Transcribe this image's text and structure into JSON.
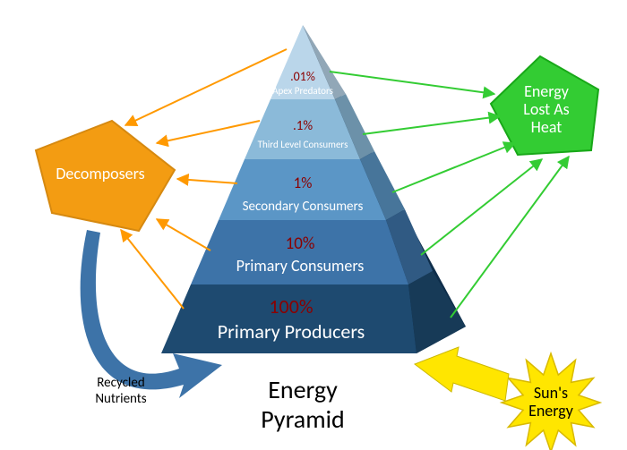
{
  "title_line1": "Energy",
  "title_line2": "Pyramid",
  "levels": [
    {
      "percent": ".01%",
      "label": "Apex Predators",
      "color": "#bad6ea",
      "pct_fontsize": 14,
      "label_fontsize": 11
    },
    {
      "percent": ".1%",
      "label": "Third Level Consumers",
      "color": "#8bbad9",
      "pct_fontsize": 15,
      "label_fontsize": 11
    },
    {
      "percent": "1%",
      "label": "Secondary Consumers",
      "color": "#5b96c6",
      "pct_fontsize": 17,
      "label_fontsize": 15
    },
    {
      "percent": "10%",
      "label": "Primary Consumers",
      "color": "#3d73a8",
      "pct_fontsize": 19,
      "label_fontsize": 18
    },
    {
      "percent": "100%",
      "label": "Primary Producers",
      "color": "#1e4a70",
      "pct_fontsize": 22,
      "label_fontsize": 22
    }
  ],
  "right_face_color": "#0e2d4a",
  "decomposers": {
    "label": "Decomposers",
    "fill": "#f39c12",
    "stroke": "#d68910"
  },
  "heat": {
    "line1": "Energy",
    "line2": "Lost As",
    "line3": "Heat",
    "fill": "#33cc33",
    "stroke": "#18a818"
  },
  "sun": {
    "line1": "Sun's",
    "line2": "Energy",
    "fill": "#ffe600",
    "stroke": "#d8b900"
  },
  "recycled": {
    "line1": "Recycled",
    "line2": "Nutrients"
  },
  "arrow_colors": {
    "orange": "#ff9900",
    "green": "#33cc33",
    "yellow": "#ffe600",
    "blue": "#3d73a8"
  },
  "background": "#ffffff"
}
